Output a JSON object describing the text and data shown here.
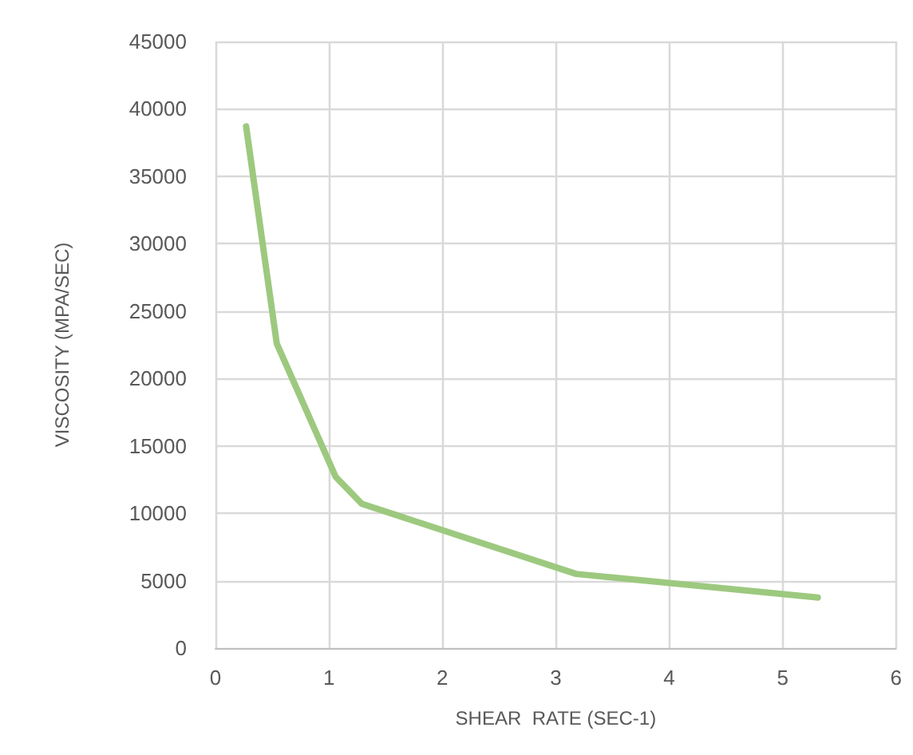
{
  "chart_data": {
    "type": "line",
    "xlabel": "SHEAR  RATE (SEC-1)",
    "ylabel": "VISCOSITY (MPA/SEC)",
    "x": [
      0.27,
      0.54,
      1.06,
      1.29,
      3.18,
      5.31
    ],
    "series": [
      {
        "color": "#9dc97f",
        "values": [
          38700,
          22600,
          12700,
          10700,
          5500,
          3750
        ]
      }
    ],
    "xlim": [
      0,
      6
    ],
    "xticks": [
      0,
      1,
      2,
      3,
      4,
      5,
      6
    ],
    "ylim": [
      0,
      45000
    ],
    "yticks": [
      0,
      5000,
      10000,
      15000,
      20000,
      25000,
      30000,
      35000,
      40000,
      45000
    ],
    "grid": true,
    "marker": "none",
    "line_style": "solid"
  }
}
